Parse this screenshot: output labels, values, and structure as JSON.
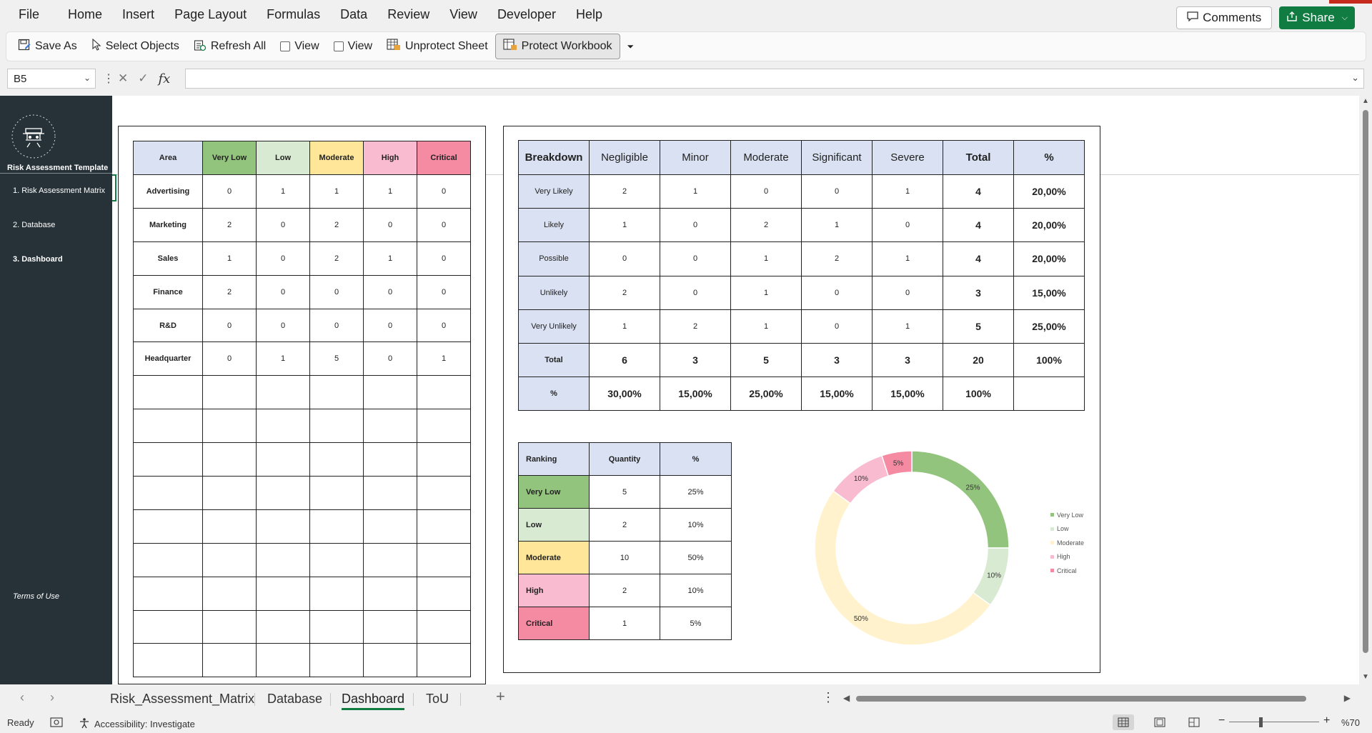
{
  "menu": [
    "File",
    "Home",
    "Insert",
    "Page Layout",
    "Formulas",
    "Data",
    "Review",
    "View",
    "Developer",
    "Help"
  ],
  "top_buttons": {
    "comments": "Comments",
    "share": "Share"
  },
  "ribbon": {
    "save_as": "Save As",
    "select_objects": "Select Objects",
    "refresh_all": "Refresh All",
    "view1": "View",
    "view2": "View",
    "unprotect_sheet": "Unprotect Sheet",
    "protect_workbook": "Protect Workbook"
  },
  "formula_bar": {
    "name_box": "B5",
    "fx": "fx",
    "value": ""
  },
  "sidebar": {
    "title": "Risk Assessment Template",
    "items": [
      "1. Risk Assessment Matrix",
      "2. Database",
      "3. Dashboard"
    ],
    "terms": "Terms of Use"
  },
  "area_table": {
    "headers": [
      "Area",
      "Very Low",
      "Low",
      "Moderate",
      "High",
      "Critical"
    ],
    "rows": [
      [
        "Advertising",
        "0",
        "1",
        "1",
        "1",
        "0"
      ],
      [
        "Marketing",
        "2",
        "0",
        "2",
        "0",
        "0"
      ],
      [
        "Sales",
        "1",
        "0",
        "2",
        "1",
        "0"
      ],
      [
        "Finance",
        "2",
        "0",
        "0",
        "0",
        "0"
      ],
      [
        "R&D",
        "0",
        "0",
        "0",
        "0",
        "0"
      ],
      [
        "Headquarter",
        "0",
        "1",
        "5",
        "0",
        "1"
      ]
    ],
    "empty_rows": 9
  },
  "breakdown_table": {
    "headers": [
      "Breakdown",
      "Negligible",
      "Minor",
      "Moderate",
      "Significant",
      "Severe",
      "Total",
      "%"
    ],
    "rows": [
      [
        "Very Likely",
        "2",
        "1",
        "0",
        "0",
        "1",
        "4",
        "20,00%"
      ],
      [
        "Likely",
        "1",
        "0",
        "2",
        "1",
        "0",
        "4",
        "20,00%"
      ],
      [
        "Possible",
        "0",
        "0",
        "1",
        "2",
        "1",
        "4",
        "20,00%"
      ],
      [
        "Unlikely",
        "2",
        "0",
        "1",
        "0",
        "0",
        "3",
        "15,00%"
      ],
      [
        "Very Unlikely",
        "1",
        "2",
        "1",
        "0",
        "1",
        "5",
        "25,00%"
      ]
    ],
    "total_row": [
      "Total",
      "6",
      "3",
      "5",
      "3",
      "3",
      "20",
      "100%"
    ],
    "pct_row": [
      "%",
      "30,00%",
      "15,00%",
      "25,00%",
      "15,00%",
      "15,00%",
      "100%",
      ""
    ]
  },
  "ranking_table": {
    "headers": [
      "Ranking",
      "Quantity",
      "%"
    ],
    "rows": [
      [
        "Very Low",
        "5",
        "25%"
      ],
      [
        "Low",
        "2",
        "10%"
      ],
      [
        "Moderate",
        "10",
        "50%"
      ],
      [
        "High",
        "2",
        "10%"
      ],
      [
        "Critical",
        "1",
        "5%"
      ]
    ]
  },
  "chart_data": {
    "type": "pie",
    "subtype": "donut",
    "title": "",
    "categories": [
      "Very Low",
      "Low",
      "Moderate",
      "High",
      "Critical"
    ],
    "values": [
      25,
      10,
      50,
      10,
      5
    ],
    "labels": [
      "25%",
      "10%",
      "50%",
      "10%",
      "5%"
    ],
    "colors": [
      "#93c47d",
      "#d9ead3",
      "#fff2cc",
      "#f8bbd0",
      "#f48ba3"
    ],
    "legend": "right"
  },
  "tabs": {
    "items": [
      "Risk_Assessment_Matrix",
      "Database",
      "Dashboard",
      "ToU"
    ],
    "active": "Dashboard"
  },
  "status": {
    "ready": "Ready",
    "accessibility": "Accessibility: Investigate",
    "zoom": "%70"
  },
  "colors": {
    "sidebar": "#263238",
    "accent": "#107c41"
  }
}
